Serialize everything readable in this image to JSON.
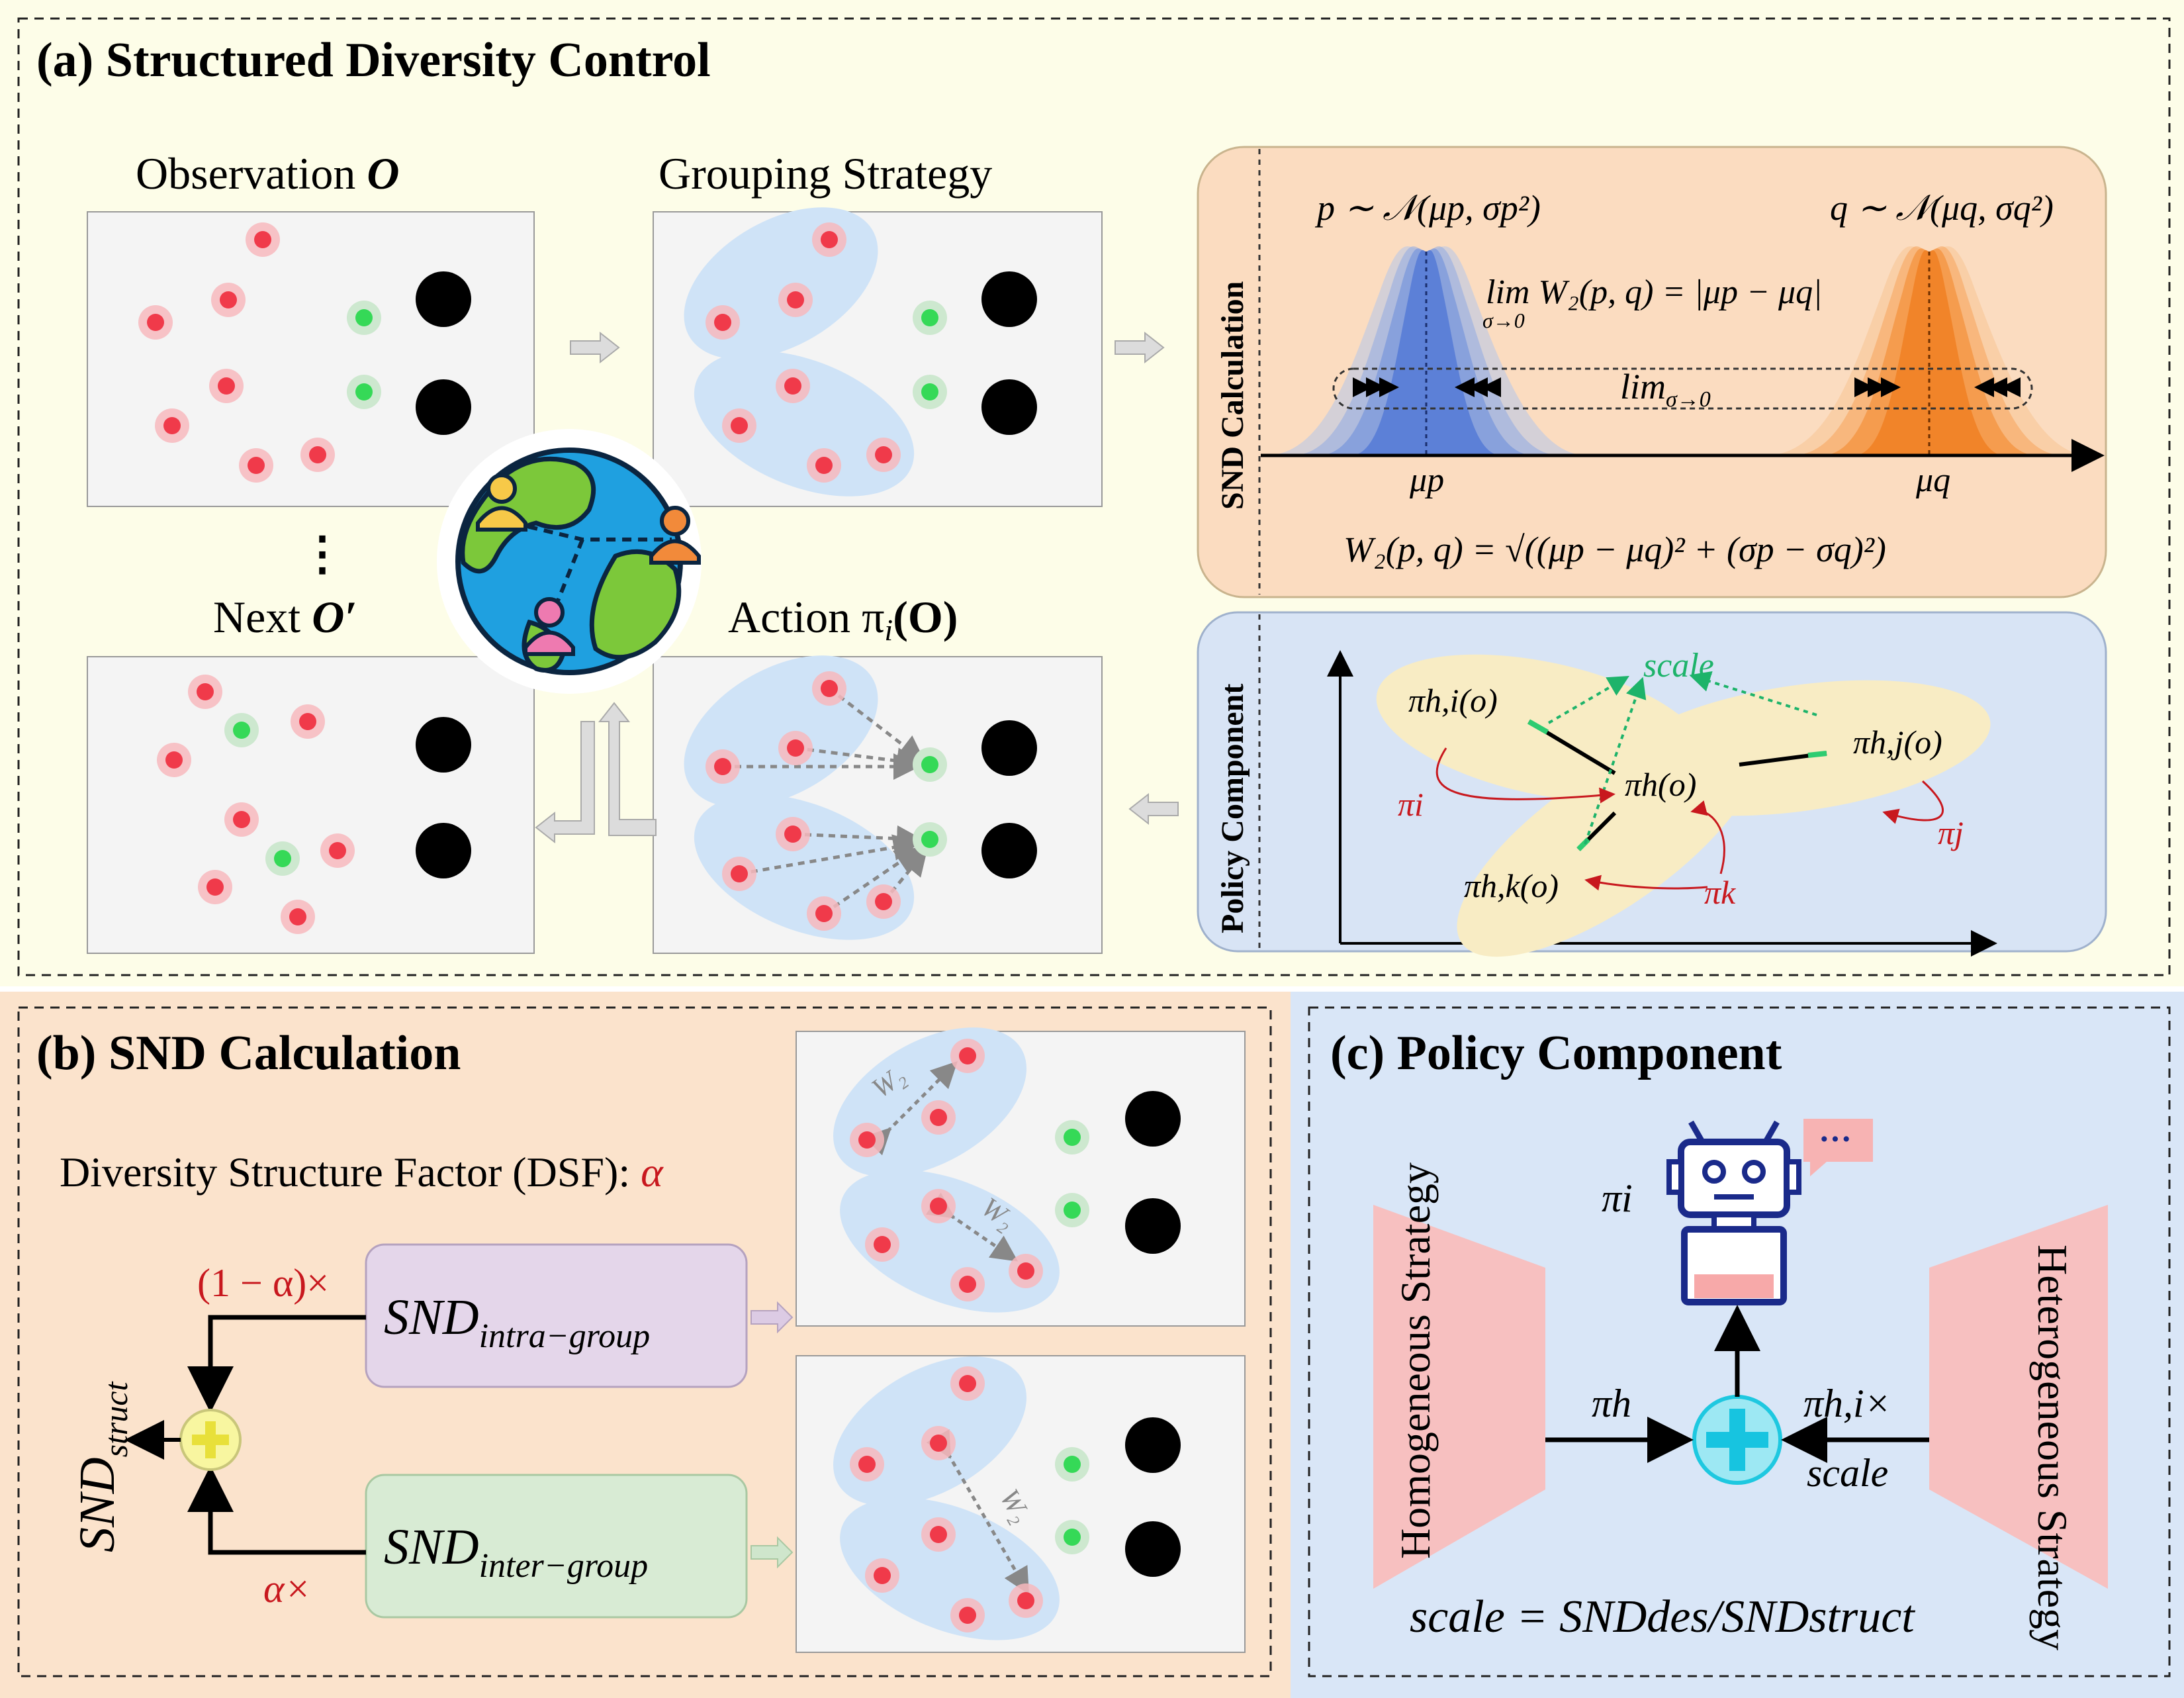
{
  "panel_a": {
    "title": "(a) Structured Diversity Control",
    "observation_label": "Observation ",
    "observation_symbol": "O",
    "grouping_label": "Grouping Strategy",
    "next_label": "Next ",
    "next_symbol": "O′",
    "action_label": "Action π",
    "action_sub": "i",
    "action_arg": "(O)",
    "ellipsis": "⋮",
    "snd_side_label": "SND Calculation",
    "policy_side_label": "Policy Component",
    "dist_p": "p ∼ 𝒩(μp, σp²)",
    "dist_q": "q ∼ 𝒩(μq, σq²)",
    "limit_formula": "lim W₂(p, q) = |μp − μq|",
    "limit_sub": "σ→0",
    "lim_label": "lim",
    "lim_sub": "σ→0",
    "mu_p": "μp",
    "mu_q": "μq",
    "w2_formula": "W₂(p, q) = √((μp − μq)² + (σp − σq)²)",
    "pi_hi": "πh,i(o)",
    "pi_hj": "πh,j(o)",
    "pi_hk": "πh,k(o)",
    "pi_h": "πh(o)",
    "scale": "scale",
    "pi_i": "πi",
    "pi_j": "πj",
    "pi_k": "πk"
  },
  "panel_b": {
    "title": "(b) SND Calculation",
    "dsf_label": "Diversity Structure Factor (DSF): ",
    "dsf_symbol": "α",
    "one_minus_alpha": "(1 − α)×",
    "alpha_times": "α×",
    "snd_intra": "SND",
    "snd_intra_sub": "intra−group",
    "snd_inter": "SND",
    "snd_inter_sub": "inter−group",
    "snd_struct": "SND",
    "snd_struct_sub": "struct",
    "w2": "W₂"
  },
  "panel_c": {
    "title": "(c) Policy Component",
    "homogeneous": "Homogeneous Strategy",
    "heterogeneous": "Heterogeneous Strategy",
    "pi_i": "πi",
    "pi_h": "πh",
    "pi_hi": "πh,i×",
    "scale": "scale",
    "formula": "scale = SNDdes/SNDstruct",
    "speech": "···"
  },
  "colors": {
    "panel_a_bg": "#fdfde8",
    "panel_b_bg": "#fbe3cc",
    "panel_c_bg": "#d9e6f7",
    "snd_box_bg": "#fbdcc0",
    "policy_box_bg": "#d8e4f5",
    "red_agent": "#f0545e",
    "green_agent": "#3ddc59",
    "group_ellipse": "#cfe3f7",
    "intra_box": "#e4d6ea",
    "inter_box": "#d8ebd4",
    "strategy_trapezoid": "#f7c0c0"
  }
}
